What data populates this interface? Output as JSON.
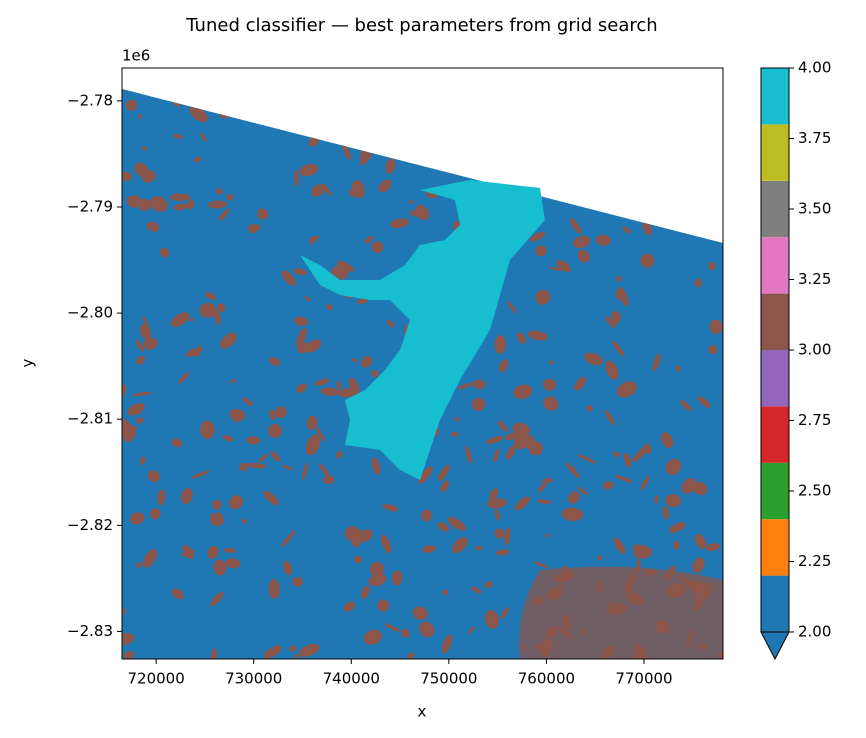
{
  "chart_data": {
    "type": "raster",
    "title": "Tuned classifier — best parameters from grid search",
    "x_label": "x",
    "y_label": "y",
    "y_offset_label": "1e6",
    "xlim": [
      716500,
      778100
    ],
    "ylim": [
      -2832600,
      -2776900
    ],
    "xticks": [
      720000,
      730000,
      740000,
      750000,
      760000,
      770000
    ],
    "yticks": [
      {
        "value": -2780000,
        "label": "−2.78"
      },
      {
        "value": -2790000,
        "label": "−2.79"
      },
      {
        "value": -2800000,
        "label": "−2.80"
      },
      {
        "value": -2810000,
        "label": "−2.81"
      },
      {
        "value": -2820000,
        "label": "−2.82"
      },
      {
        "value": -2830000,
        "label": "−2.83"
      }
    ],
    "colorbar": {
      "lim": [
        2,
        4
      ],
      "extend": "min",
      "boundaries": [
        2,
        2.2,
        2.4,
        2.6,
        2.8,
        3,
        3.2,
        3.4,
        3.6,
        3.8,
        4
      ],
      "colors": [
        "#1f77b4",
        "#ff7f0e",
        "#2ca02c",
        "#d62728",
        "#9467bd",
        "#8c564b",
        "#e377c2",
        "#7f7f7f",
        "#bcbd22",
        "#17becf"
      ],
      "ticks": [
        {
          "value": 2,
          "label": "2.00"
        },
        {
          "value": 2.25,
          "label": "2.25"
        },
        {
          "value": 2.5,
          "label": "2.50"
        },
        {
          "value": 2.75,
          "label": "2.75"
        },
        {
          "value": 3,
          "label": "3.00"
        },
        {
          "value": 3.25,
          "label": "3.25"
        },
        {
          "value": 3.5,
          "label": "3.50"
        },
        {
          "value": 3.75,
          "label": "3.75"
        },
        {
          "value": 4,
          "label": "4.00"
        }
      ]
    }
  }
}
